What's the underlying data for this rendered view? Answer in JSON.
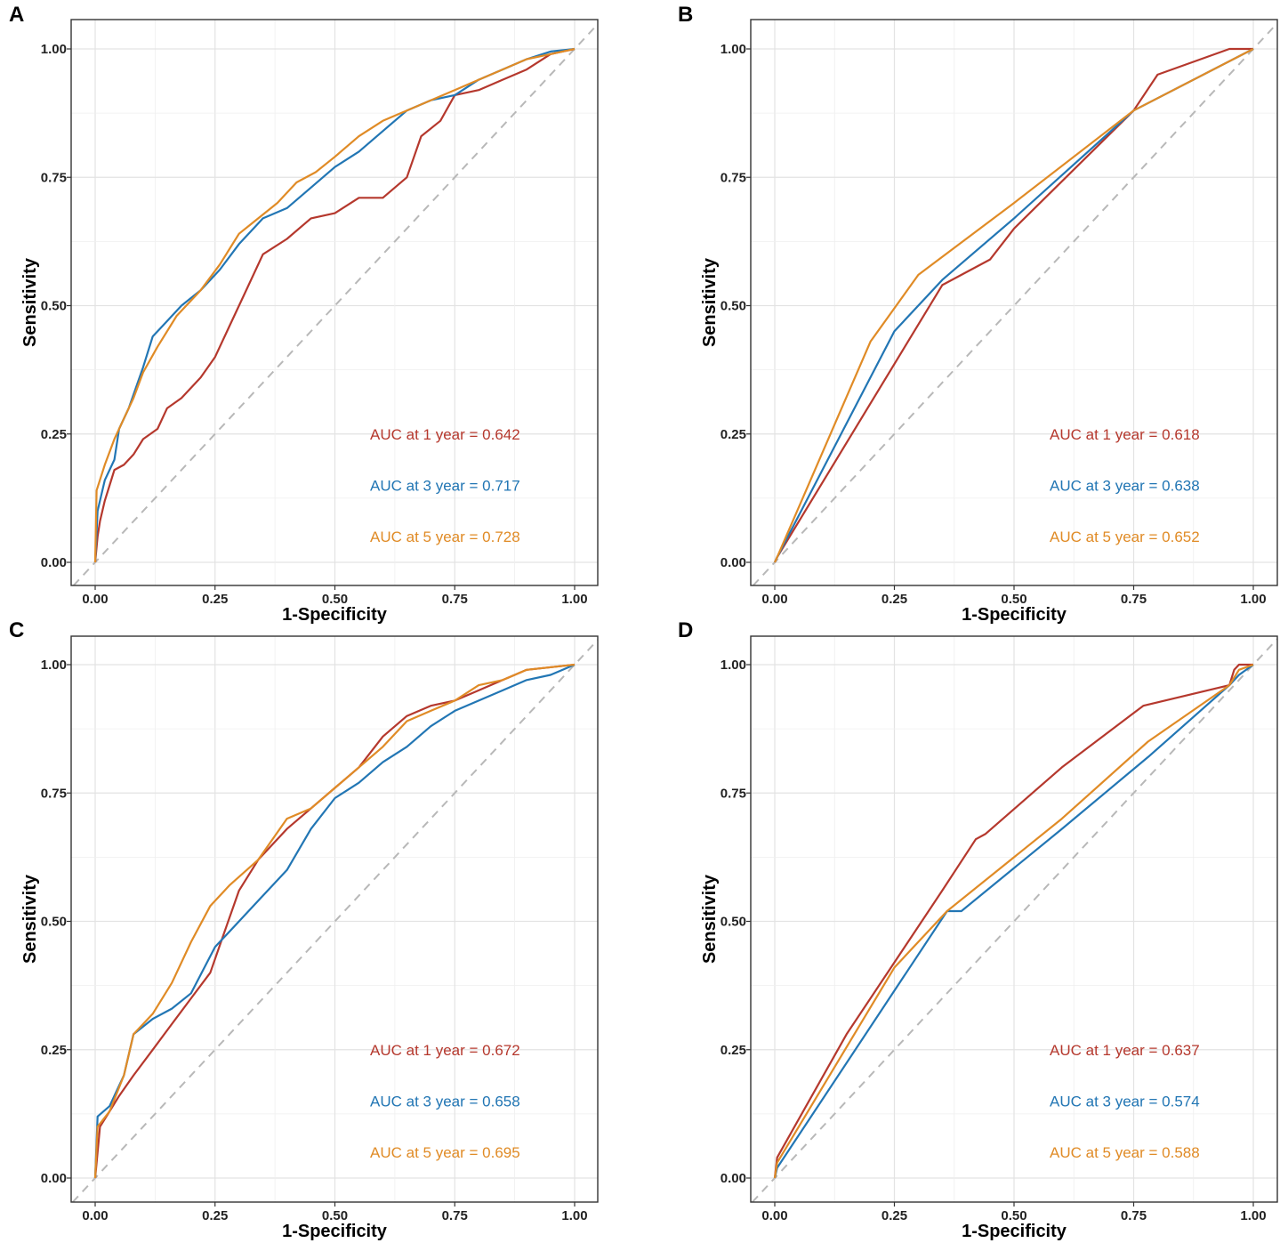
{
  "chart_data": [
    {
      "panel": "A",
      "type": "line",
      "title": "",
      "xlabel": "1-Specificity",
      "ylabel": "Sensitivity",
      "xlim": [
        0,
        1
      ],
      "ylim": [
        0,
        1
      ],
      "xticks": [
        "0.00",
        "0.25",
        "0.50",
        "0.75",
        "1.00"
      ],
      "yticks": [
        "0.00",
        "0.25",
        "0.50",
        "0.75",
        "1.00"
      ],
      "grid": true,
      "reference_line": [
        [
          0,
          0
        ],
        [
          1,
          1
        ]
      ],
      "series": [
        {
          "name": "AUC at 1 year = 0.642",
          "color": "#B5382D",
          "points": [
            [
              0,
              0
            ],
            [
              0.005,
              0.05
            ],
            [
              0.01,
              0.08
            ],
            [
              0.02,
              0.12
            ],
            [
              0.03,
              0.15
            ],
            [
              0.04,
              0.18
            ],
            [
              0.06,
              0.19
            ],
            [
              0.08,
              0.21
            ],
            [
              0.1,
              0.24
            ],
            [
              0.13,
              0.26
            ],
            [
              0.15,
              0.3
            ],
            [
              0.18,
              0.32
            ],
            [
              0.22,
              0.36
            ],
            [
              0.25,
              0.4
            ],
            [
              0.28,
              0.46
            ],
            [
              0.31,
              0.52
            ],
            [
              0.35,
              0.6
            ],
            [
              0.4,
              0.63
            ],
            [
              0.45,
              0.67
            ],
            [
              0.5,
              0.68
            ],
            [
              0.55,
              0.71
            ],
            [
              0.6,
              0.71
            ],
            [
              0.65,
              0.75
            ],
            [
              0.68,
              0.83
            ],
            [
              0.72,
              0.86
            ],
            [
              0.75,
              0.91
            ],
            [
              0.8,
              0.92
            ],
            [
              0.85,
              0.94
            ],
            [
              0.9,
              0.96
            ],
            [
              0.95,
              0.99
            ],
            [
              1,
              1
            ]
          ]
        },
        {
          "name": "AUC at 3 year = 0.717",
          "color": "#2276B4",
          "points": [
            [
              0,
              0
            ],
            [
              0.005,
              0.1
            ],
            [
              0.02,
              0.16
            ],
            [
              0.04,
              0.2
            ],
            [
              0.05,
              0.26
            ],
            [
              0.07,
              0.3
            ],
            [
              0.1,
              0.38
            ],
            [
              0.12,
              0.44
            ],
            [
              0.14,
              0.46
            ],
            [
              0.18,
              0.5
            ],
            [
              0.22,
              0.53
            ],
            [
              0.26,
              0.57
            ],
            [
              0.3,
              0.62
            ],
            [
              0.35,
              0.67
            ],
            [
              0.4,
              0.69
            ],
            [
              0.45,
              0.73
            ],
            [
              0.5,
              0.77
            ],
            [
              0.55,
              0.8
            ],
            [
              0.6,
              0.84
            ],
            [
              0.65,
              0.88
            ],
            [
              0.7,
              0.9
            ],
            [
              0.75,
              0.91
            ],
            [
              0.8,
              0.94
            ],
            [
              0.85,
              0.96
            ],
            [
              0.9,
              0.98
            ],
            [
              0.95,
              0.995
            ],
            [
              1,
              1
            ]
          ]
        },
        {
          "name": "AUC at 5 year = 0.728",
          "color": "#E08B26",
          "points": [
            [
              0,
              0
            ],
            [
              0.003,
              0.14
            ],
            [
              0.02,
              0.19
            ],
            [
              0.04,
              0.24
            ],
            [
              0.06,
              0.28
            ],
            [
              0.08,
              0.32
            ],
            [
              0.1,
              0.37
            ],
            [
              0.13,
              0.42
            ],
            [
              0.17,
              0.48
            ],
            [
              0.22,
              0.53
            ],
            [
              0.26,
              0.58
            ],
            [
              0.3,
              0.64
            ],
            [
              0.34,
              0.67
            ],
            [
              0.38,
              0.7
            ],
            [
              0.42,
              0.74
            ],
            [
              0.46,
              0.76
            ],
            [
              0.5,
              0.79
            ],
            [
              0.55,
              0.83
            ],
            [
              0.6,
              0.86
            ],
            [
              0.65,
              0.88
            ],
            [
              0.7,
              0.9
            ],
            [
              0.75,
              0.92
            ],
            [
              0.8,
              0.94
            ],
            [
              0.85,
              0.96
            ],
            [
              0.9,
              0.98
            ],
            [
              0.95,
              0.99
            ],
            [
              1,
              1
            ]
          ]
        }
      ]
    },
    {
      "panel": "B",
      "type": "line",
      "title": "",
      "xlabel": "1-Specificity",
      "ylabel": "Sensitivity",
      "xlim": [
        0,
        1
      ],
      "ylim": [
        0,
        1
      ],
      "xticks": [
        "0.00",
        "0.25",
        "0.50",
        "0.75",
        "1.00"
      ],
      "yticks": [
        "0.00",
        "0.25",
        "0.50",
        "0.75",
        "1.00"
      ],
      "grid": true,
      "reference_line": [
        [
          0,
          0
        ],
        [
          1,
          1
        ]
      ],
      "series": [
        {
          "name": "AUC at 1 year = 0.618",
          "color": "#B5382D",
          "points": [
            [
              0,
              0
            ],
            [
              0.005,
              0.01
            ],
            [
              0.35,
              0.54
            ],
            [
              0.45,
              0.59
            ],
            [
              0.5,
              0.65
            ],
            [
              0.75,
              0.88
            ],
            [
              0.8,
              0.95
            ],
            [
              0.95,
              1
            ],
            [
              1,
              1
            ]
          ]
        },
        {
          "name": "AUC at 3 year = 0.638",
          "color": "#2276B4",
          "points": [
            [
              0,
              0
            ],
            [
              0.005,
              0.01
            ],
            [
              0.25,
              0.45
            ],
            [
              0.35,
              0.55
            ],
            [
              0.5,
              0.67
            ],
            [
              0.75,
              0.88
            ],
            [
              1,
              1
            ]
          ]
        },
        {
          "name": "AUC at 5 year = 0.652",
          "color": "#E08B26",
          "points": [
            [
              0,
              0
            ],
            [
              0.005,
              0.01
            ],
            [
              0.2,
              0.43
            ],
            [
              0.3,
              0.56
            ],
            [
              0.5,
              0.7
            ],
            [
              0.75,
              0.88
            ],
            [
              1,
              1
            ]
          ]
        }
      ]
    },
    {
      "panel": "C",
      "type": "line",
      "title": "",
      "xlabel": "1-Specificity",
      "ylabel": "Sensitivity",
      "xlim": [
        0,
        1
      ],
      "ylim": [
        0,
        1
      ],
      "xticks": [
        "0.00",
        "0.25",
        "0.50",
        "0.75",
        "1.00"
      ],
      "yticks": [
        "0.00",
        "0.25",
        "0.50",
        "0.75",
        "1.00"
      ],
      "grid": true,
      "reference_line": [
        [
          0,
          0
        ],
        [
          1,
          1
        ]
      ],
      "series": [
        {
          "name": "AUC at 1 year = 0.672",
          "color": "#B5382D",
          "points": [
            [
              0,
              0
            ],
            [
              0.01,
              0.1
            ],
            [
              0.03,
              0.13
            ],
            [
              0.05,
              0.16
            ],
            [
              0.08,
              0.2
            ],
            [
              0.12,
              0.25
            ],
            [
              0.16,
              0.3
            ],
            [
              0.2,
              0.35
            ],
            [
              0.24,
              0.4
            ],
            [
              0.27,
              0.48
            ],
            [
              0.3,
              0.56
            ],
            [
              0.34,
              0.62
            ],
            [
              0.4,
              0.68
            ],
            [
              0.45,
              0.72
            ],
            [
              0.5,
              0.76
            ],
            [
              0.55,
              0.8
            ],
            [
              0.6,
              0.86
            ],
            [
              0.65,
              0.9
            ],
            [
              0.7,
              0.92
            ],
            [
              0.75,
              0.93
            ],
            [
              0.8,
              0.95
            ],
            [
              0.85,
              0.97
            ],
            [
              0.9,
              0.99
            ],
            [
              1,
              1
            ]
          ]
        },
        {
          "name": "AUC at 3 year = 0.658",
          "color": "#2276B4",
          "points": [
            [
              0,
              0
            ],
            [
              0.005,
              0.12
            ],
            [
              0.03,
              0.14
            ],
            [
              0.06,
              0.2
            ],
            [
              0.08,
              0.28
            ],
            [
              0.12,
              0.31
            ],
            [
              0.16,
              0.33
            ],
            [
              0.2,
              0.36
            ],
            [
              0.25,
              0.45
            ],
            [
              0.3,
              0.5
            ],
            [
              0.35,
              0.55
            ],
            [
              0.4,
              0.6
            ],
            [
              0.45,
              0.68
            ],
            [
              0.5,
              0.74
            ],
            [
              0.55,
              0.77
            ],
            [
              0.6,
              0.81
            ],
            [
              0.65,
              0.84
            ],
            [
              0.7,
              0.88
            ],
            [
              0.75,
              0.91
            ],
            [
              0.8,
              0.93
            ],
            [
              0.85,
              0.95
            ],
            [
              0.9,
              0.97
            ],
            [
              0.95,
              0.98
            ],
            [
              1,
              1
            ]
          ]
        },
        {
          "name": "AUC at 5 year = 0.695",
          "color": "#E08B26",
          "points": [
            [
              0,
              0
            ],
            [
              0.005,
              0.1
            ],
            [
              0.03,
              0.13
            ],
            [
              0.06,
              0.2
            ],
            [
              0.08,
              0.28
            ],
            [
              0.12,
              0.32
            ],
            [
              0.16,
              0.38
            ],
            [
              0.2,
              0.46
            ],
            [
              0.24,
              0.53
            ],
            [
              0.28,
              0.57
            ],
            [
              0.34,
              0.62
            ],
            [
              0.4,
              0.7
            ],
            [
              0.45,
              0.72
            ],
            [
              0.5,
              0.76
            ],
            [
              0.55,
              0.8
            ],
            [
              0.6,
              0.84
            ],
            [
              0.65,
              0.89
            ],
            [
              0.7,
              0.91
            ],
            [
              0.75,
              0.93
            ],
            [
              0.8,
              0.96
            ],
            [
              0.85,
              0.97
            ],
            [
              0.9,
              0.99
            ],
            [
              1,
              1
            ]
          ]
        }
      ]
    },
    {
      "panel": "D",
      "type": "line",
      "title": "",
      "xlabel": "1-Specificity",
      "ylabel": "Sensitivity",
      "xlim": [
        0,
        1
      ],
      "ylim": [
        0,
        1
      ],
      "xticks": [
        "0.00",
        "0.25",
        "0.50",
        "0.75",
        "1.00"
      ],
      "yticks": [
        "0.00",
        "0.25",
        "0.50",
        "0.75",
        "1.00"
      ],
      "grid": true,
      "reference_line": [
        [
          0,
          0
        ],
        [
          1,
          1
        ]
      ],
      "series": [
        {
          "name": "AUC at 1 year = 0.637",
          "color": "#B5382D",
          "points": [
            [
              0,
              0
            ],
            [
              0.005,
              0.04
            ],
            [
              0.15,
              0.28
            ],
            [
              0.35,
              0.56
            ],
            [
              0.42,
              0.66
            ],
            [
              0.44,
              0.67
            ],
            [
              0.6,
              0.8
            ],
            [
              0.77,
              0.92
            ],
            [
              0.95,
              0.96
            ],
            [
              0.96,
              0.99
            ],
            [
              0.97,
              1
            ],
            [
              1,
              1
            ]
          ]
        },
        {
          "name": "AUC at 3 year = 0.574",
          "color": "#2276B4",
          "points": [
            [
              0,
              0
            ],
            [
              0.005,
              0.02
            ],
            [
              0.36,
              0.52
            ],
            [
              0.39,
              0.52
            ],
            [
              0.6,
              0.68
            ],
            [
              0.78,
              0.82
            ],
            [
              0.95,
              0.96
            ],
            [
              0.97,
              0.98
            ],
            [
              1,
              1
            ]
          ]
        },
        {
          "name": "AUC at 5 year = 0.588",
          "color": "#E08B26",
          "points": [
            [
              0,
              0
            ],
            [
              0.005,
              0.03
            ],
            [
              0.25,
              0.41
            ],
            [
              0.36,
              0.52
            ],
            [
              0.6,
              0.7
            ],
            [
              0.78,
              0.85
            ],
            [
              0.95,
              0.96
            ],
            [
              0.97,
              0.99
            ],
            [
              1,
              1
            ]
          ]
        }
      ]
    }
  ]
}
